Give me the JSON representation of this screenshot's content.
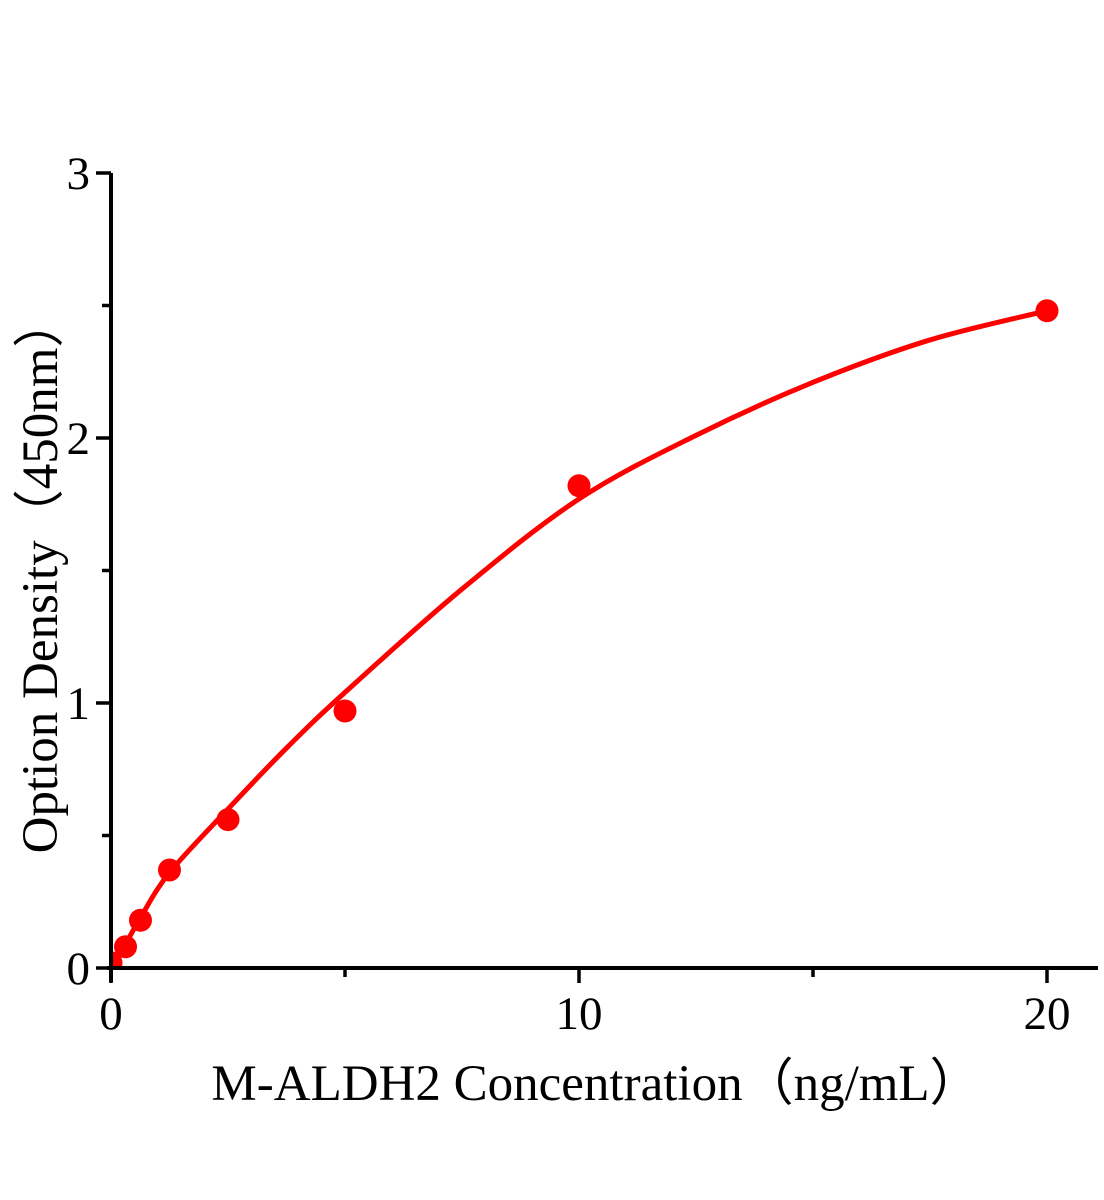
{
  "figure": {
    "background_color": "#ffffff",
    "axis_color": "#000000",
    "accent_color": "#ff0000"
  },
  "chart_data": {
    "type": "scatter",
    "title": "",
    "xlabel": "M-ALDH2 Concentration（ng/mL）",
    "ylabel": "Option Density（450nm）",
    "xlim": [
      0,
      21.1
    ],
    "ylim": [
      0,
      3
    ],
    "grid": false,
    "legend": "none",
    "x_major_ticks": [
      0,
      10,
      20
    ],
    "x_major_tick_labels": [
      "0",
      "10",
      "20"
    ],
    "x_minor_ticks": [
      5,
      15
    ],
    "y_major_ticks": [
      0,
      1,
      2,
      3
    ],
    "y_major_tick_labels": [
      "0",
      "1",
      "2",
      "3"
    ],
    "y_minor_ticks": [
      0.5,
      1.5,
      2.5
    ],
    "series": [
      {
        "name": "standard-points",
        "kind": "scatter",
        "color": "#ff0000",
        "marker": "circle",
        "points": [
          [
            0,
            0.02
          ],
          [
            0.31,
            0.08
          ],
          [
            0.63,
            0.18
          ],
          [
            1.25,
            0.37
          ],
          [
            2.5,
            0.56
          ],
          [
            5,
            0.97
          ],
          [
            10,
            1.82
          ],
          [
            20,
            2.48
          ]
        ]
      },
      {
        "name": "fit-curve",
        "kind": "line",
        "color": "#ff0000",
        "points": [
          [
            0,
            0.0
          ],
          [
            0.31,
            0.09
          ],
          [
            0.63,
            0.19
          ],
          [
            1.25,
            0.36
          ],
          [
            2.5,
            0.6
          ],
          [
            3.75,
            0.83
          ],
          [
            5,
            1.04
          ],
          [
            7.5,
            1.43
          ],
          [
            10,
            1.77
          ],
          [
            12.5,
            2.01
          ],
          [
            15,
            2.21
          ],
          [
            17.5,
            2.37
          ],
          [
            20,
            2.48
          ]
        ]
      }
    ]
  }
}
